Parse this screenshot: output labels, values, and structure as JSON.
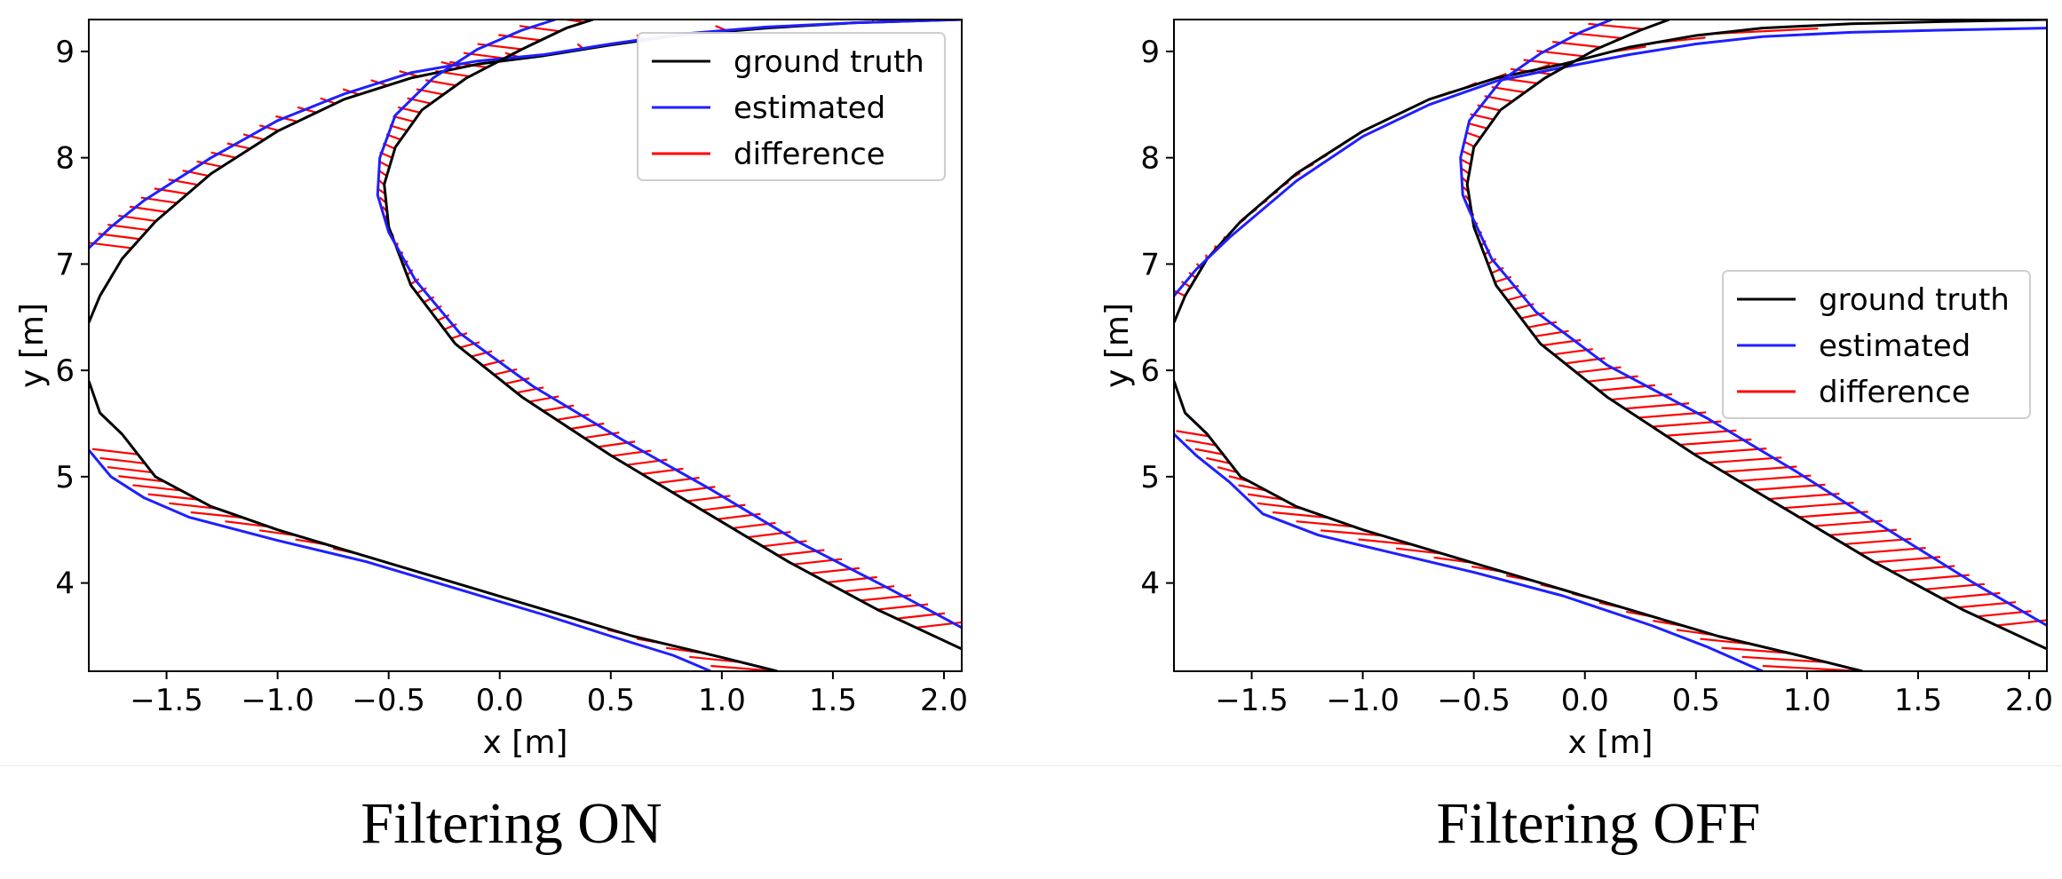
{
  "chart_data": [
    {
      "type": "line",
      "caption": "Filtering ON",
      "xlabel": "x [m]",
      "ylabel": "y [m]",
      "xlim": [
        -1.85,
        2.08
      ],
      "ylim": [
        3.17,
        9.3
      ],
      "xticks": [
        -1.5,
        -1.0,
        -0.5,
        0.0,
        0.5,
        1.0,
        1.5,
        2.0
      ],
      "xtick_labels": [
        "−1.5",
        "−1.0",
        "−0.5",
        "0.0",
        "0.5",
        "1.0",
        "1.5",
        "2.0"
      ],
      "yticks": [
        4,
        5,
        6,
        7,
        8,
        9
      ],
      "ytick_labels": [
        "4",
        "5",
        "6",
        "7",
        "8",
        "9"
      ],
      "legend": [
        "ground truth",
        "estimated",
        "difference"
      ],
      "legend_position": "upper-right",
      "colors": {
        "ground_truth": "#000000",
        "estimated": "#1f1fff",
        "difference": "#ff0000"
      },
      "series": [
        {
          "name": "ground truth",
          "points": [
            [
              -1.85,
              6.45
            ],
            [
              -1.8,
              6.7
            ],
            [
              -1.7,
              7.05
            ],
            [
              -1.55,
              7.4
            ],
            [
              -1.3,
              7.85
            ],
            [
              -1.0,
              8.25
            ],
            [
              -0.7,
              8.55
            ],
            [
              -0.4,
              8.75
            ],
            [
              -0.1,
              8.88
            ],
            [
              0.2,
              8.96
            ],
            [
              0.5,
              9.06
            ],
            [
              0.8,
              9.15
            ],
            [
              1.2,
              9.22
            ],
            [
              1.6,
              9.27
            ],
            [
              2.08,
              9.3
            ]
          ]
        },
        {
          "name": "estimated",
          "points": [
            [
              -1.85,
              7.15
            ],
            [
              -1.75,
              7.35
            ],
            [
              -1.6,
              7.6
            ],
            [
              -1.3,
              8.0
            ],
            [
              -1.0,
              8.35
            ],
            [
              -0.7,
              8.6
            ],
            [
              -0.4,
              8.8
            ],
            [
              -0.1,
              8.91
            ],
            [
              0.2,
              8.97
            ],
            [
              0.5,
              9.07
            ],
            [
              0.8,
              9.16
            ],
            [
              1.2,
              9.23
            ],
            [
              1.6,
              9.27
            ],
            [
              2.08,
              9.3
            ]
          ]
        },
        {
          "name": "ground truth",
          "points": [
            [
              0.42,
              9.3
            ],
            [
              0.3,
              9.22
            ],
            [
              0.1,
              9.02
            ],
            [
              -0.15,
              8.75
            ],
            [
              -0.35,
              8.45
            ],
            [
              -0.47,
              8.1
            ],
            [
              -0.52,
              7.75
            ],
            [
              -0.5,
              7.35
            ],
            [
              -0.4,
              6.8
            ],
            [
              -0.2,
              6.25
            ],
            [
              0.1,
              5.75
            ],
            [
              0.5,
              5.2
            ],
            [
              0.9,
              4.7
            ],
            [
              1.3,
              4.2
            ],
            [
              1.7,
              3.75
            ],
            [
              2.08,
              3.38
            ]
          ]
        },
        {
          "name": "estimated",
          "points": [
            [
              0.25,
              9.3
            ],
            [
              0.1,
              9.2
            ],
            [
              -0.1,
              9.02
            ],
            [
              -0.3,
              8.75
            ],
            [
              -0.47,
              8.4
            ],
            [
              -0.54,
              8.0
            ],
            [
              -0.55,
              7.65
            ],
            [
              -0.5,
              7.3
            ],
            [
              -0.38,
              6.85
            ],
            [
              -0.18,
              6.35
            ],
            [
              0.15,
              5.85
            ],
            [
              0.55,
              5.35
            ],
            [
              0.95,
              4.88
            ],
            [
              1.35,
              4.38
            ],
            [
              1.75,
              3.95
            ],
            [
              2.08,
              3.58
            ]
          ]
        },
        {
          "name": "ground truth",
          "points": [
            [
              -1.85,
              5.9
            ],
            [
              -1.8,
              5.6
            ],
            [
              -1.7,
              5.4
            ],
            [
              -1.55,
              5.0
            ],
            [
              -1.3,
              4.72
            ],
            [
              -1.0,
              4.5
            ],
            [
              -0.6,
              4.25
            ],
            [
              -0.2,
              4.0
            ],
            [
              0.2,
              3.75
            ],
            [
              0.6,
              3.5
            ],
            [
              1.0,
              3.3
            ],
            [
              1.25,
              3.17
            ]
          ]
        },
        {
          "name": "estimated",
          "points": [
            [
              -1.85,
              5.25
            ],
            [
              -1.75,
              5.0
            ],
            [
              -1.6,
              4.8
            ],
            [
              -1.4,
              4.62
            ],
            [
              -1.0,
              4.4
            ],
            [
              -0.6,
              4.2
            ],
            [
              -0.2,
              3.95
            ],
            [
              0.2,
              3.7
            ],
            [
              0.5,
              3.5
            ],
            [
              0.78,
              3.32
            ],
            [
              0.95,
              3.17
            ]
          ]
        }
      ]
    },
    {
      "type": "line",
      "caption": "Filtering OFF",
      "xlabel": "x [m]",
      "ylabel": "y [m]",
      "xlim": [
        -1.85,
        2.08
      ],
      "ylim": [
        3.17,
        9.3
      ],
      "xticks": [
        -1.5,
        -1.0,
        -0.5,
        0.0,
        0.5,
        1.0,
        1.5,
        2.0
      ],
      "xtick_labels": [
        "−1.5",
        "−1.0",
        "−0.5",
        "0.0",
        "0.5",
        "1.0",
        "1.5",
        "2.0"
      ],
      "yticks": [
        4,
        5,
        6,
        7,
        8,
        9
      ],
      "ytick_labels": [
        "4",
        "5",
        "6",
        "7",
        "8",
        "9"
      ],
      "legend": [
        "ground truth",
        "estimated",
        "difference"
      ],
      "legend_position": "center-right",
      "colors": {
        "ground_truth": "#000000",
        "estimated": "#1f1fff",
        "difference": "#ff0000"
      },
      "series": [
        {
          "name": "ground truth",
          "points": [
            [
              -1.85,
              6.45
            ],
            [
              -1.8,
              6.7
            ],
            [
              -1.7,
              7.05
            ],
            [
              -1.55,
              7.4
            ],
            [
              -1.3,
              7.85
            ],
            [
              -1.0,
              8.25
            ],
            [
              -0.7,
              8.55
            ],
            [
              -0.4,
              8.75
            ],
            [
              -0.1,
              8.88
            ],
            [
              0.2,
              9.04
            ],
            [
              0.5,
              9.15
            ],
            [
              0.8,
              9.22
            ],
            [
              1.2,
              9.26
            ],
            [
              1.6,
              9.28
            ],
            [
              2.08,
              9.3
            ]
          ]
        },
        {
          "name": "estimated",
          "points": [
            [
              -1.85,
              6.7
            ],
            [
              -1.75,
              6.95
            ],
            [
              -1.6,
              7.25
            ],
            [
              -1.3,
              7.78
            ],
            [
              -1.0,
              8.2
            ],
            [
              -0.7,
              8.5
            ],
            [
              -0.4,
              8.72
            ],
            [
              -0.1,
              8.85
            ],
            [
              0.0,
              8.89
            ],
            [
              0.2,
              8.97
            ],
            [
              0.5,
              9.07
            ],
            [
              0.8,
              9.14
            ],
            [
              1.2,
              9.18
            ],
            [
              1.6,
              9.2
            ],
            [
              2.08,
              9.22
            ]
          ]
        },
        {
          "name": "ground truth",
          "points": [
            [
              0.38,
              9.3
            ],
            [
              0.25,
              9.2
            ],
            [
              0.05,
              9.02
            ],
            [
              -0.18,
              8.75
            ],
            [
              -0.38,
              8.45
            ],
            [
              -0.5,
              8.1
            ],
            [
              -0.53,
              7.75
            ],
            [
              -0.5,
              7.35
            ],
            [
              -0.4,
              6.8
            ],
            [
              -0.2,
              6.25
            ],
            [
              0.1,
              5.75
            ],
            [
              0.5,
              5.2
            ],
            [
              0.9,
              4.7
            ],
            [
              1.3,
              4.2
            ],
            [
              1.7,
              3.75
            ],
            [
              2.08,
              3.38
            ]
          ]
        },
        {
          "name": "estimated",
          "points": [
            [
              0.12,
              9.3
            ],
            [
              -0.02,
              9.18
            ],
            [
              -0.2,
              8.98
            ],
            [
              -0.38,
              8.72
            ],
            [
              -0.52,
              8.35
            ],
            [
              -0.56,
              8.0
            ],
            [
              -0.55,
              7.65
            ],
            [
              -0.52,
              7.5
            ],
            [
              -0.42,
              7.05
            ],
            [
              -0.22,
              6.55
            ],
            [
              0.1,
              6.05
            ],
            [
              0.55,
              5.55
            ],
            [
              0.95,
              5.05
            ],
            [
              1.35,
              4.52
            ],
            [
              1.75,
              4.0
            ],
            [
              2.08,
              3.6
            ]
          ]
        },
        {
          "name": "ground truth",
          "points": [
            [
              -1.85,
              5.9
            ],
            [
              -1.8,
              5.6
            ],
            [
              -1.7,
              5.4
            ],
            [
              -1.55,
              5.0
            ],
            [
              -1.3,
              4.72
            ],
            [
              -1.0,
              4.5
            ],
            [
              -0.6,
              4.25
            ],
            [
              -0.2,
              4.0
            ],
            [
              0.2,
              3.75
            ],
            [
              0.6,
              3.5
            ],
            [
              1.0,
              3.3
            ],
            [
              1.25,
              3.17
            ]
          ]
        },
        {
          "name": "estimated",
          "points": [
            [
              -1.85,
              5.4
            ],
            [
              -1.75,
              5.2
            ],
            [
              -1.6,
              4.95
            ],
            [
              -1.45,
              4.65
            ],
            [
              -1.2,
              4.45
            ],
            [
              -0.9,
              4.3
            ],
            [
              -0.5,
              4.1
            ],
            [
              -0.1,
              3.88
            ],
            [
              0.3,
              3.6
            ],
            [
              0.55,
              3.4
            ],
            [
              0.8,
              3.17
            ]
          ]
        }
      ]
    }
  ]
}
